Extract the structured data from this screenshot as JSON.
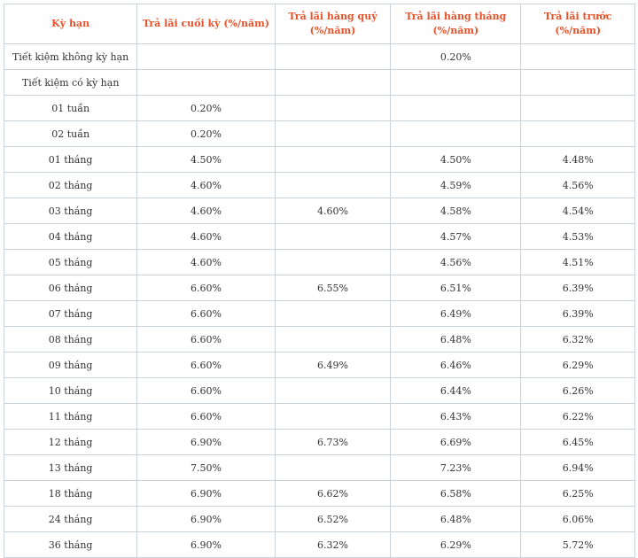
{
  "table": {
    "headers": [
      "Kỳ hạn",
      "Trả lãi cuối  kỳ (%/năm)",
      "Trả lãi hàng quý (%/năm)",
      "Trả lãi hàng tháng (%/năm)",
      "Trả lãi trước (%/năm)"
    ],
    "rows": [
      [
        "Tiết kiệm không kỳ hạn",
        "",
        "",
        "0.20%",
        ""
      ],
      [
        "Tiết kiệm có kỳ hạn",
        "",
        "",
        "",
        ""
      ],
      [
        "01 tuần",
        "0.20%",
        "",
        "",
        ""
      ],
      [
        "02 tuần",
        "0.20%",
        "",
        "",
        ""
      ],
      [
        "01 tháng",
        "4.50%",
        "",
        "4.50%",
        "4.48%"
      ],
      [
        "02 tháng",
        "4.60%",
        "",
        "4.59%",
        "4.56%"
      ],
      [
        "03 tháng",
        "4.60%",
        "4.60%",
        "4.58%",
        "4.54%"
      ],
      [
        "04 tháng",
        "4.60%",
        "",
        "4.57%",
        "4.53%"
      ],
      [
        "05 tháng",
        "4.60%",
        "",
        "4.56%",
        "4.51%"
      ],
      [
        "06 tháng",
        "6.60%",
        "6.55%",
        "6.51%",
        "6.39%"
      ],
      [
        "07 tháng",
        "6.60%",
        "",
        "6.49%",
        "6.39%"
      ],
      [
        "08 tháng",
        "6.60%",
        "",
        "6.48%",
        "6.32%"
      ],
      [
        "09 tháng",
        "6.60%",
        "6.49%",
        "6.46%",
        "6.29%"
      ],
      [
        "10 tháng",
        "6.60%",
        "",
        "6.44%",
        "6.26%"
      ],
      [
        "11 tháng",
        "6.60%",
        "",
        "6.43%",
        "6.22%"
      ],
      [
        "12 tháng",
        "6.90%",
        "6.73%",
        "6.69%",
        "6.45%"
      ],
      [
        "13 tháng",
        "7.50%",
        "",
        "7.23%",
        "6.94%"
      ],
      [
        "18 tháng",
        "6.90%",
        "6.62%",
        "6.58%",
        "6.25%"
      ],
      [
        "24 tháng",
        "6.90%",
        "6.52%",
        "6.48%",
        "6.06%"
      ],
      [
        "36 tháng",
        "6.90%",
        "6.32%",
        "6.29%",
        "5.72%"
      ]
    ]
  }
}
